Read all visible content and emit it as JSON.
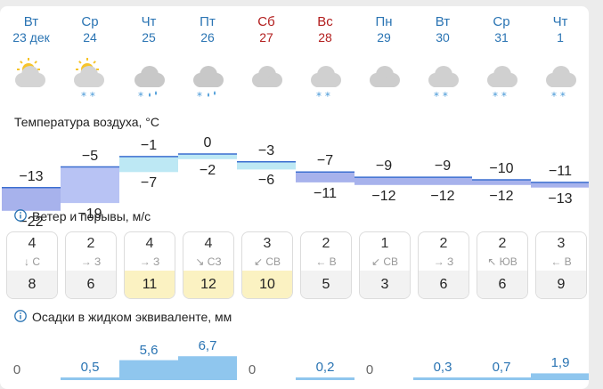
{
  "days": [
    {
      "dow": "Вт",
      "date": "23 дек",
      "weekend": false,
      "icon": "sun-cloud-icon"
    },
    {
      "dow": "Ср",
      "date": "24",
      "weekend": false,
      "icon": "sun-cloud-snow-icon"
    },
    {
      "dow": "Чт",
      "date": "25",
      "weekend": false,
      "icon": "cloud-sleet-icon"
    },
    {
      "dow": "Пт",
      "date": "26",
      "weekend": false,
      "icon": "cloud-sleet-icon"
    },
    {
      "dow": "Сб",
      "date": "27",
      "weekend": true,
      "icon": "cloud-icon"
    },
    {
      "dow": "Вс",
      "date": "28",
      "weekend": true,
      "icon": "cloud-snow-icon"
    },
    {
      "dow": "Пн",
      "date": "29",
      "weekend": false,
      "icon": "cloud-icon"
    },
    {
      "dow": "Вт",
      "date": "30",
      "weekend": false,
      "icon": "cloud-snow-icon"
    },
    {
      "dow": "Ср",
      "date": "31",
      "weekend": false,
      "icon": "cloud-snow-icon"
    },
    {
      "dow": "Чт",
      "date": "1",
      "weekend": false,
      "icon": "cloud-snow-icon"
    }
  ],
  "temperature": {
    "title": "Температура воздуха, °C",
    "max": [
      "−13",
      "−5",
      "−1",
      "0",
      "−3",
      "−7",
      "−9",
      "−9",
      "−10",
      "−11"
    ],
    "min": [
      "−22",
      "−19",
      "−7",
      "−2",
      "−6",
      "−11",
      "−12",
      "−12",
      "−12",
      "−13"
    ],
    "max_values": [
      -13,
      -5,
      -1,
      0,
      -3,
      -7,
      -9,
      -9,
      -10,
      -11
    ],
    "min_values": [
      -22,
      -19,
      -7,
      -2,
      -6,
      -11,
      -12,
      -12,
      -12,
      -13
    ]
  },
  "wind": {
    "title": "Ветер и порывы, м/с",
    "speed": [
      "4",
      "2",
      "4",
      "4",
      "3",
      "2",
      "1",
      "2",
      "2",
      "3"
    ],
    "direction": [
      "↓ С",
      "→ З",
      "→ З",
      "↘ СЗ",
      "↙ СВ",
      "← В",
      "↙ СВ",
      "→ З",
      "↖ ЮВ",
      "← В"
    ],
    "gust": [
      "8",
      "6",
      "11",
      "12",
      "10",
      "5",
      "3",
      "6",
      "6",
      "9"
    ],
    "gust_highlight": [
      false,
      false,
      true,
      true,
      true,
      false,
      false,
      false,
      false,
      false
    ]
  },
  "precipitation": {
    "title": "Осадки в жидком эквиваленте, мм",
    "labels": [
      "0",
      "0,5",
      "5,6",
      "6,7",
      "0",
      "0,2",
      "0",
      "0,3",
      "0,7",
      "1,9"
    ],
    "values": [
      0,
      0.5,
      5.6,
      6.7,
      0,
      0.2,
      0,
      0.3,
      0.7,
      1.9
    ]
  },
  "colors": {
    "accent": "#2a74b3",
    "weekend": "#b21d1d",
    "gust_highlight": "#fbf2c2",
    "precip_bar": "#8fc6ee"
  }
}
